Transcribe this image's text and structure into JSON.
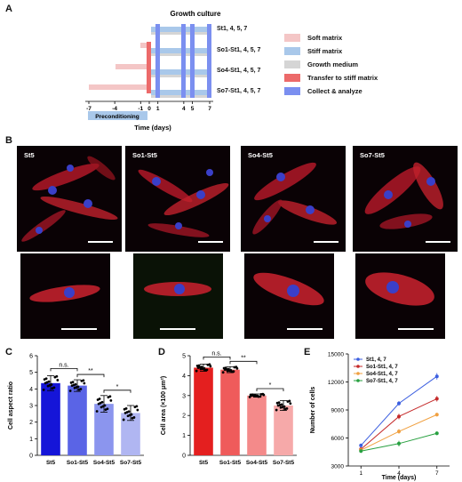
{
  "panels": {
    "A": {
      "letter": "A",
      "header": "Growth culture",
      "rows": [
        "St1, 4, 5, 7",
        "So1-St1, 4, 5, 7",
        "So4-St1, 4, 5, 7",
        "So7-St1, 4, 5, 7"
      ],
      "ticks": [
        "-7",
        "-4",
        "-1",
        "0",
        "1",
        "4",
        "5",
        "7"
      ],
      "preconditioning": "Preconditioning",
      "axis_label": "Time (days)",
      "legend": [
        {
          "label": "Soft matrix",
          "color": "#f4c6c6"
        },
        {
          "label": "Stiff matrix",
          "color": "#a9c8ea"
        },
        {
          "label": "Growth medium",
          "color": "#d5d5d5"
        },
        {
          "label": "Transfer to stiff matrix",
          "color": "#ec6a6a"
        },
        {
          "label": "Collect & analyze",
          "color": "#7b8ff0"
        }
      ]
    },
    "B": {
      "letter": "B",
      "labels": [
        "St5",
        "So1-St5",
        "So4-St5",
        "So7-St5"
      ]
    },
    "C": {
      "letter": "C"
    },
    "D": {
      "letter": "D"
    },
    "E": {
      "letter": "E"
    }
  },
  "chart_data": [
    {
      "type": "bar",
      "panel": "C",
      "categories": [
        "St5",
        "So1-St5",
        "So4-St5",
        "So7-St5"
      ],
      "values": [
        4.35,
        4.2,
        3.1,
        2.55
      ],
      "errors": [
        0.45,
        0.35,
        0.5,
        0.45
      ],
      "colors": [
        "#1515d8",
        "#5a64e6",
        "#8b95ee",
        "#b0b6f2"
      ],
      "ylabel": "Cell aspect ratio",
      "ylim": [
        0,
        6
      ],
      "yticks": [
        0,
        1,
        2,
        3,
        4,
        5,
        6
      ],
      "sig": [
        {
          "from": 0,
          "to": 1,
          "label": "n.s."
        },
        {
          "from": 1,
          "to": 2,
          "label": "**"
        },
        {
          "from": 2,
          "to": 3,
          "label": "*"
        }
      ]
    },
    {
      "type": "bar",
      "panel": "D",
      "categories": [
        "St5",
        "So1-St5",
        "So4-St5",
        "So7-St5"
      ],
      "values": [
        4.4,
        4.3,
        3.0,
        2.5
      ],
      "errors": [
        0.18,
        0.15,
        0.08,
        0.25
      ],
      "colors": [
        "#e41f1f",
        "#ef5b5b",
        "#f48a8a",
        "#f6a9a9"
      ],
      "ylabel": "Cell area (×100 μm²)",
      "ylim": [
        0,
        5
      ],
      "yticks": [
        0,
        1,
        2,
        3,
        4,
        5
      ],
      "sig": [
        {
          "from": 0,
          "to": 1,
          "label": "n.s."
        },
        {
          "from": 1,
          "to": 2,
          "label": "**"
        },
        {
          "from": 2,
          "to": 3,
          "label": "*"
        }
      ]
    },
    {
      "type": "line",
      "panel": "E",
      "x": [
        1,
        4,
        7
      ],
      "xlabel": "Time (days)",
      "ylabel": "Number of cells",
      "xlim": [
        0,
        8
      ],
      "ylim": [
        3000,
        15000
      ],
      "yticks": [
        3000,
        6000,
        9000,
        12000,
        15000
      ],
      "xticks": [
        1,
        4,
        7
      ],
      "legend_position": "top-left",
      "series": [
        {
          "name": "St1, 4, 7",
          "color": "#3c5fe0",
          "values": [
            5200,
            9700,
            12600
          ],
          "errors": [
            200,
            250,
            350
          ]
        },
        {
          "name": "So1-St1, 4, 7",
          "color": "#c52a2a",
          "values": [
            4800,
            8300,
            10200
          ],
          "errors": [
            200,
            300,
            300
          ]
        },
        {
          "name": "So4-St1, 4, 7",
          "color": "#f0a040",
          "values": [
            4700,
            6700,
            8500
          ],
          "errors": [
            200,
            250,
            200
          ]
        },
        {
          "name": "So7-St1, 4, 7",
          "color": "#28a040",
          "values": [
            4600,
            5400,
            6500
          ],
          "errors": [
            200,
            300,
            200
          ]
        }
      ]
    }
  ]
}
